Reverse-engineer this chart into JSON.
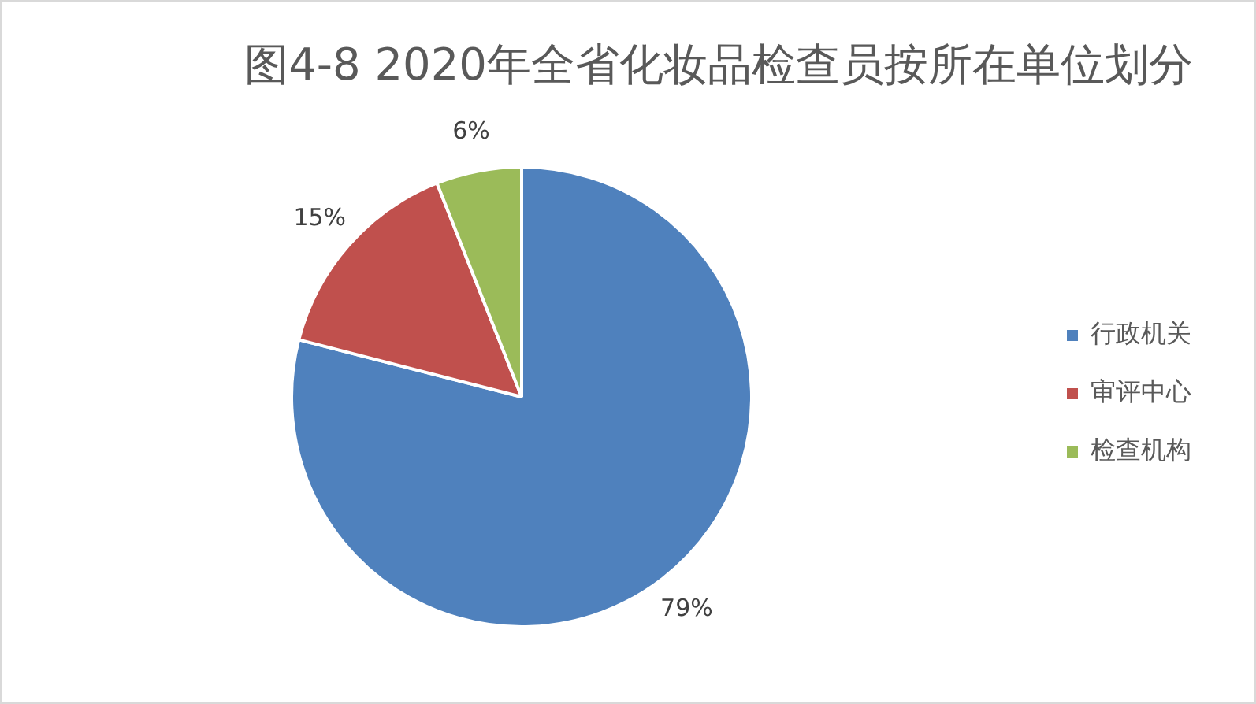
{
  "chart_data": {
    "type": "pie",
    "title": "图4-8 2020年全省化妆品检查员按所在单位划分",
    "categories": [
      "行政机关",
      "审评中心",
      "检查机构"
    ],
    "values": [
      79,
      15,
      6
    ],
    "colors": [
      "#4f81bd",
      "#c0504d",
      "#9bbb59"
    ],
    "value_labels": [
      "79%",
      "15%",
      "6%"
    ],
    "legend": "right"
  }
}
